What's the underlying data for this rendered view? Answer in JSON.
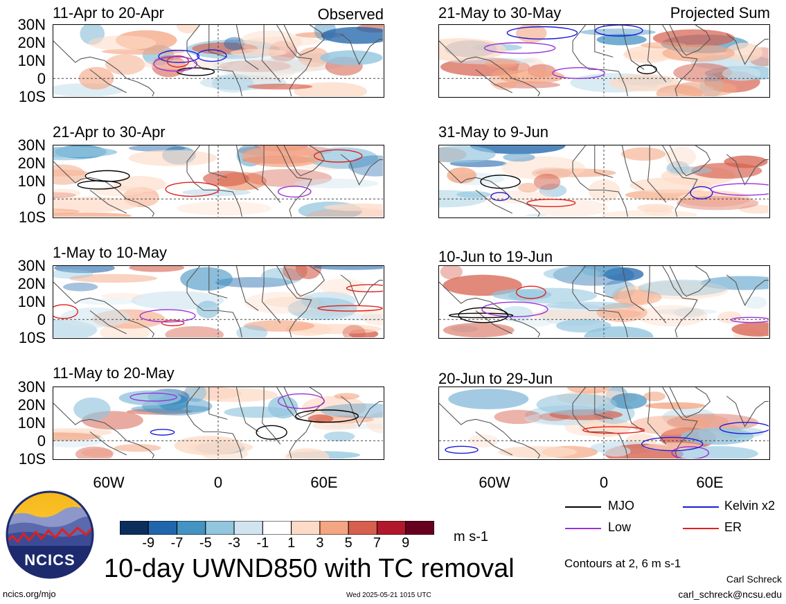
{
  "panels_observed": [
    {
      "title": "11-Apr to 20-Apr",
      "tag": "Observed"
    },
    {
      "title": "21-Apr to 30-Apr",
      "tag": ""
    },
    {
      "title": "1-May to 10-May",
      "tag": ""
    },
    {
      "title": "11-May to 20-May",
      "tag": ""
    }
  ],
  "panels_projected": [
    {
      "title": "21-May to 30-May",
      "tag": "Projected Sum"
    },
    {
      "title": "31-May to 9-Jun",
      "tag": ""
    },
    {
      "title": "10-Jun to 19-Jun",
      "tag": ""
    },
    {
      "title": "20-Jun to 29-Jun",
      "tag": ""
    }
  ],
  "lat_labels": [
    "30N",
    "20N",
    "10N",
    "0",
    "10S"
  ],
  "lon_labels": [
    "60W",
    "0",
    "60E"
  ],
  "colorbar": {
    "labels": [
      "-9",
      "-7",
      "-5",
      "-3",
      "-1",
      "1",
      "3",
      "5",
      "7",
      "9"
    ],
    "colors": [
      "#0b2e5c",
      "#2166ac",
      "#4393c3",
      "#92c5de",
      "#d1e5f0",
      "#ffffff",
      "#fddbc7",
      "#f4a582",
      "#d6604d",
      "#b2182b",
      "#67001f"
    ],
    "unit": "m s-1"
  },
  "legend": {
    "mjo": "MJO",
    "kelvin": "Kelvin x2",
    "low": "Low",
    "er": "ER",
    "colors": {
      "mjo": "#000000",
      "kelvin": "#1a1adb",
      "low": "#9b30d9",
      "er": "#e0201e"
    }
  },
  "contours_note": "Contours at 2, 6 m s-1",
  "main_title": "10-day UWND850 with TC removal",
  "logo_text": "NCICS",
  "footer": {
    "site": "ncics.org/mjo",
    "timestamp": "Wed 2025-05-21 1015 UTC",
    "author": "Carl Schreck",
    "email": "carl_schreck@ncsu.edu"
  }
}
